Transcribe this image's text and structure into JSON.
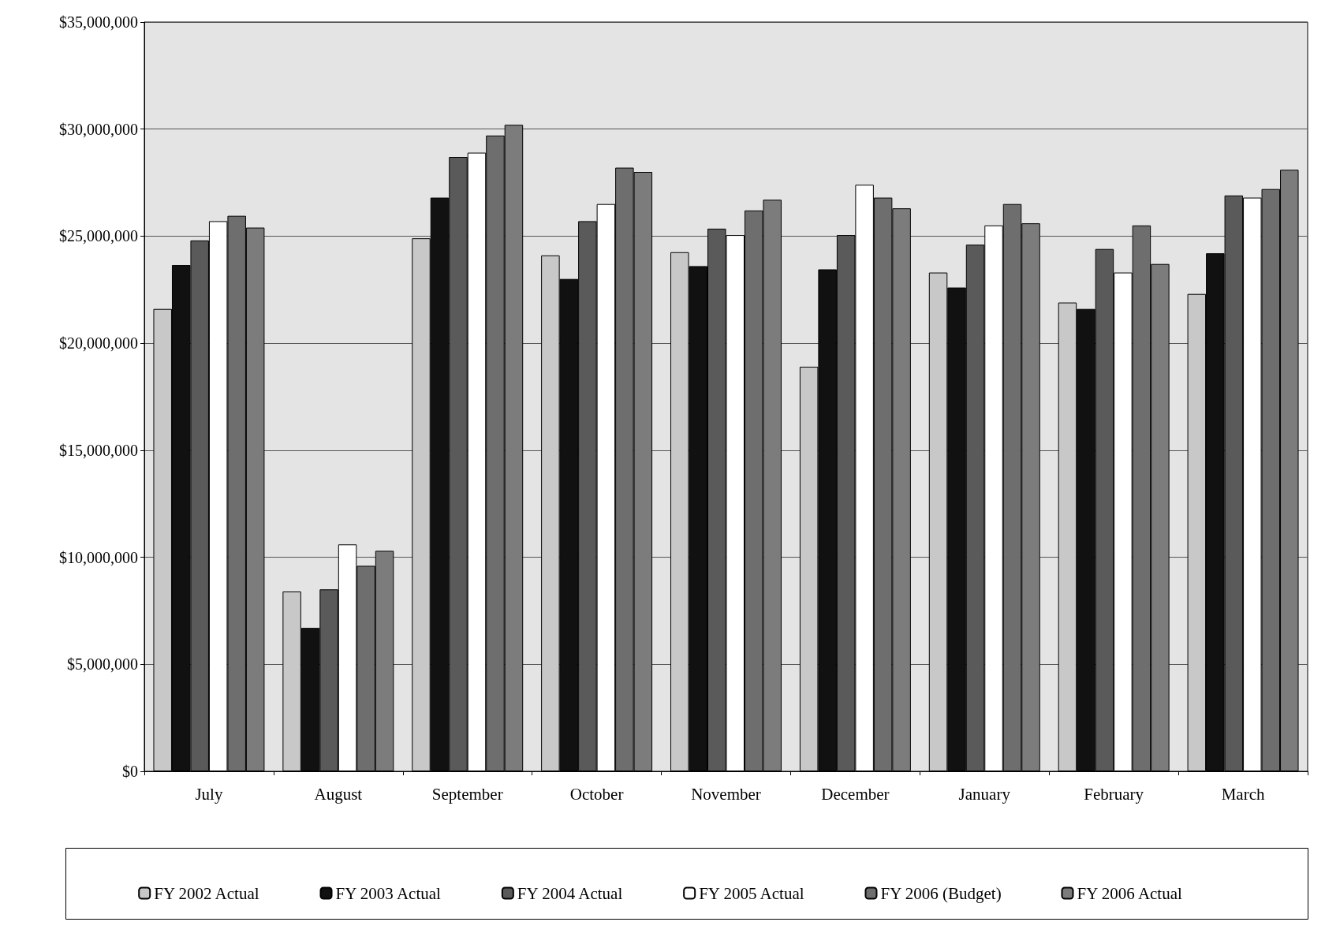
{
  "chart_data": {
    "type": "bar",
    "categories": [
      "July",
      "August",
      "September",
      "October",
      "November",
      "December",
      "January",
      "February",
      "March"
    ],
    "series": [
      {
        "name": "FY 2002 Actual",
        "color": "#c8c8c8",
        "values": [
          21600000,
          8400000,
          24900000,
          24100000,
          24250000,
          18900000,
          23300000,
          21900000,
          22300000
        ]
      },
      {
        "name": "FY 2003 Actual",
        "color": "#111111",
        "values": [
          23650000,
          6700000,
          26800000,
          23000000,
          23600000,
          23450000,
          22600000,
          21600000,
          24200000
        ]
      },
      {
        "name": "FY 2004 Actual",
        "color": "#5a5a5a",
        "values": [
          24800000,
          8500000,
          28700000,
          25700000,
          25350000,
          25050000,
          24600000,
          24400000,
          26900000
        ]
      },
      {
        "name": "FY 2005 Actual",
        "color": "#ffffff",
        "values": [
          25700000,
          10600000,
          28900000,
          26500000,
          25050000,
          27400000,
          25500000,
          23300000,
          26800000
        ]
      },
      {
        "name": "FY 2006 (Budget)",
        "color": "#6e6e6e",
        "values": [
          25950000,
          9600000,
          29700000,
          28200000,
          26200000,
          26800000,
          26500000,
          25500000,
          27200000
        ]
      },
      {
        "name": "FY 2006 Actual",
        "color": "#7c7c7c",
        "values": [
          25400000,
          10300000,
          30200000,
          28000000,
          26700000,
          26300000,
          25600000,
          23700000,
          28100000
        ]
      }
    ],
    "ylim": [
      0,
      35000000
    ],
    "yticks": [
      {
        "value": 0,
        "label": "$0"
      },
      {
        "value": 5000000,
        "label": "$5,000,000"
      },
      {
        "value": 10000000,
        "label": "$10,000,000"
      },
      {
        "value": 15000000,
        "label": "$15,000,000"
      },
      {
        "value": 20000000,
        "label": "$20,000,000"
      },
      {
        "value": 25000000,
        "label": "$25,000,000"
      },
      {
        "value": 30000000,
        "label": "$30,000,000"
      },
      {
        "value": 35000000,
        "label": "$35,000,000"
      }
    ],
    "grid": "y",
    "legend": "bottom"
  }
}
